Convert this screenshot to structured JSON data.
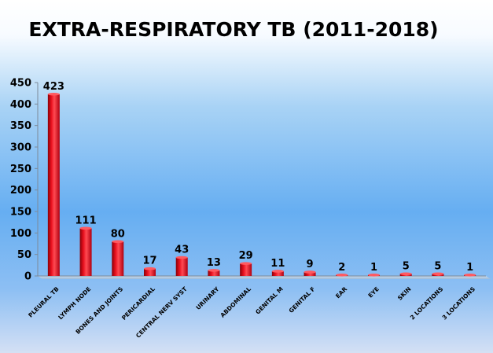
{
  "chart_data": {
    "type": "bar",
    "title": "EXTRA-RESPIRATORY TB (2011-2018)",
    "xlabel": "",
    "ylabel": "",
    "ylim": [
      0,
      450
    ],
    "yticks": [
      0,
      50,
      100,
      150,
      200,
      250,
      300,
      350,
      400,
      450
    ],
    "grid": false,
    "legend": "none",
    "bar_color": "#e8101e",
    "categories": [
      "PLEURAL TB",
      "LYMPH NODE",
      "BONES AND JOINTS",
      "PERICARDIAL",
      "CENTRAL NERV SYST",
      "URINARY",
      "ABDOMINAL",
      "GENITAL M",
      "GENITAL F",
      "EAR",
      "EYE",
      "SKIN",
      "2 LOCATIONS",
      "3 LOCATIONS"
    ],
    "values": [
      423,
      111,
      80,
      17,
      43,
      13,
      29,
      11,
      9,
      2,
      1,
      5,
      5,
      1
    ],
    "data_labels": [
      "423",
      "111",
      "80",
      "17",
      "43",
      "13",
      "29",
      "11",
      "9",
      "2",
      "1",
      "5",
      "5",
      "1"
    ]
  }
}
